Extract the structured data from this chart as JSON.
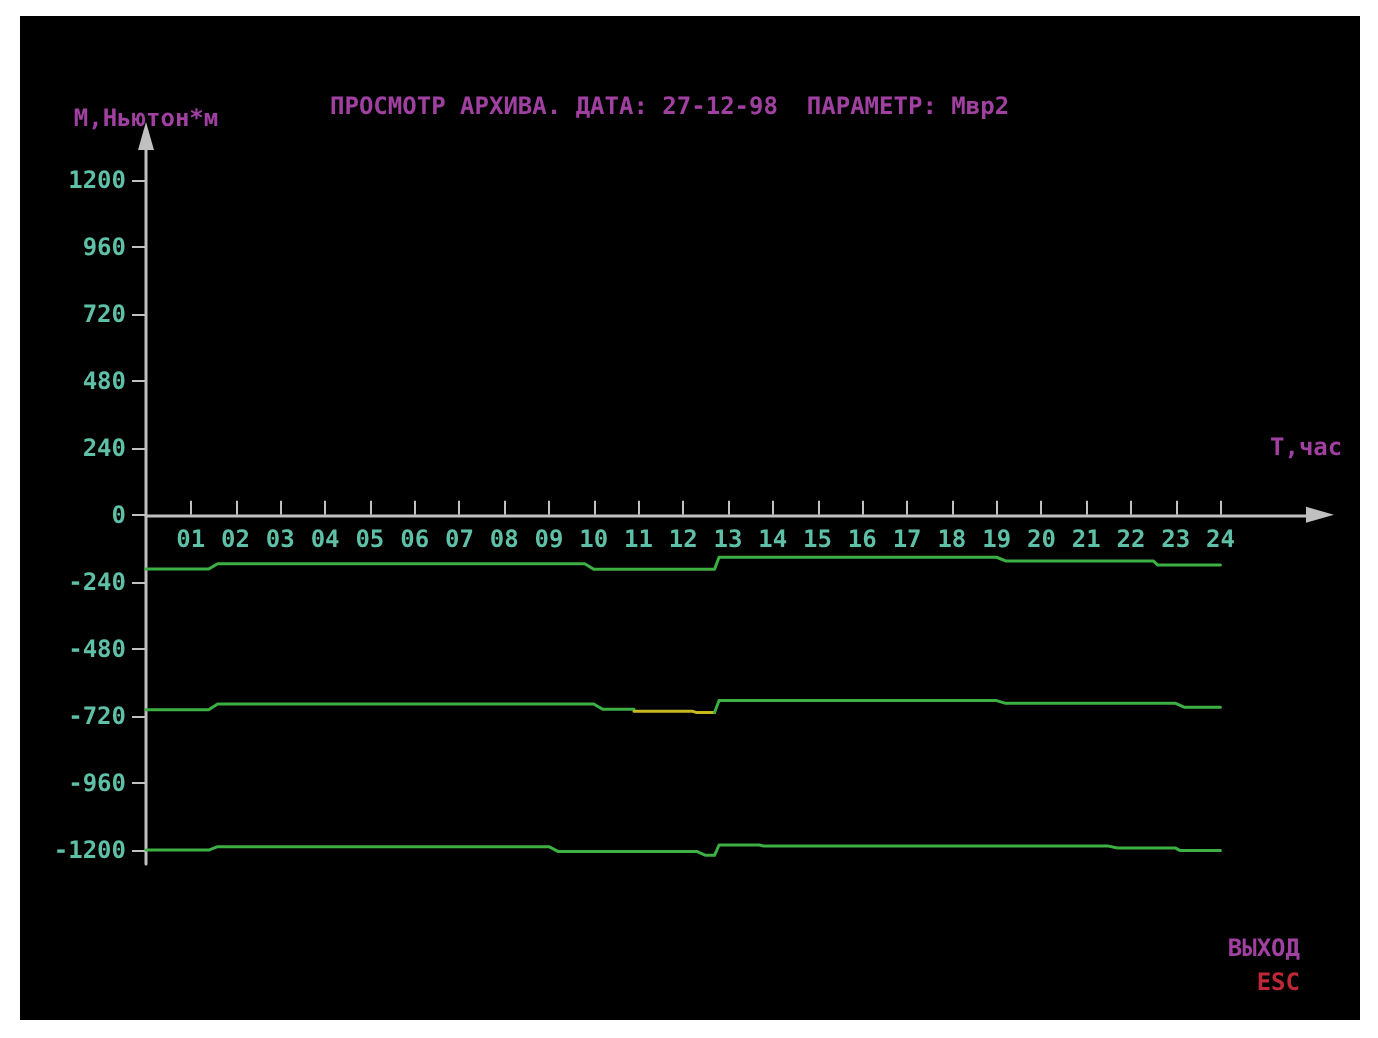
{
  "chart_data": {
    "type": "line",
    "title": "ПРОСМОТР АРХИВА. ДАТА: 27-12-98  ПАРАМЕТР: Мвр2",
    "xlabel": "Т,час",
    "ylabel": "М,Ньютон*м",
    "annotations": [
      "ВЫХОД",
      "ESC"
    ],
    "xlim": [
      0,
      26
    ],
    "xticks": [
      {
        "value": 1,
        "label": "01"
      },
      {
        "value": 2,
        "label": "02"
      },
      {
        "value": 3,
        "label": "03"
      },
      {
        "value": 4,
        "label": "04"
      },
      {
        "value": 5,
        "label": "05"
      },
      {
        "value": 6,
        "label": "06"
      },
      {
        "value": 7,
        "label": "07"
      },
      {
        "value": 8,
        "label": "08"
      },
      {
        "value": 9,
        "label": "09"
      },
      10,
      11,
      12,
      13,
      14,
      15,
      16,
      17,
      18,
      19,
      20,
      21,
      22,
      23,
      24
    ],
    "ylim": [
      -1250,
      1320
    ],
    "yticks": [
      -1200,
      -960,
      -720,
      -480,
      -240,
      0,
      240,
      480,
      720,
      960,
      1200
    ],
    "series": [
      {
        "color": "#3cb043",
        "x": [
          0,
          1.4,
          1.6,
          9.8,
          10.0,
          12.7,
          12.8,
          19.0,
          19.2,
          22.5,
          22.6,
          24
        ],
        "values": [
          -194,
          -194,
          -175,
          -175,
          -195,
          -195,
          -152,
          -152,
          -165,
          -165,
          -180,
          -180
        ]
      },
      {
        "color": "#3cb043",
        "x": [
          0,
          1.4,
          1.6,
          10.0,
          10.2,
          10.9
        ],
        "values": [
          -698,
          -698,
          -677,
          -677,
          -696,
          -696
        ]
      },
      {
        "color": "#c8b820",
        "x": [
          10.9,
          12.2,
          12.3,
          12.7
        ],
        "values": [
          -703,
          -703,
          -708,
          -708
        ]
      },
      {
        "color": "#3cb043",
        "x": [
          12.7,
          12.8,
          19.0,
          19.2,
          23.0,
          23.2,
          24
        ],
        "values": [
          -708,
          -665,
          -665,
          -675,
          -675,
          -689,
          -689
        ]
      },
      {
        "color": "#3cb043",
        "x": [
          0,
          1.4,
          1.6,
          9.0,
          9.2,
          12.3,
          12.5,
          12.7,
          12.8,
          13.7,
          13.8,
          21.5,
          21.7,
          23.0,
          23.1,
          24
        ],
        "values": [
          -1200,
          -1200,
          -1188,
          -1188,
          -1205,
          -1205,
          -1219,
          -1219,
          -1182,
          -1182,
          -1186,
          -1186,
          -1193,
          -1193,
          -1202,
          -1202
        ]
      }
    ],
    "marker": "none",
    "line_style": "solid"
  }
}
